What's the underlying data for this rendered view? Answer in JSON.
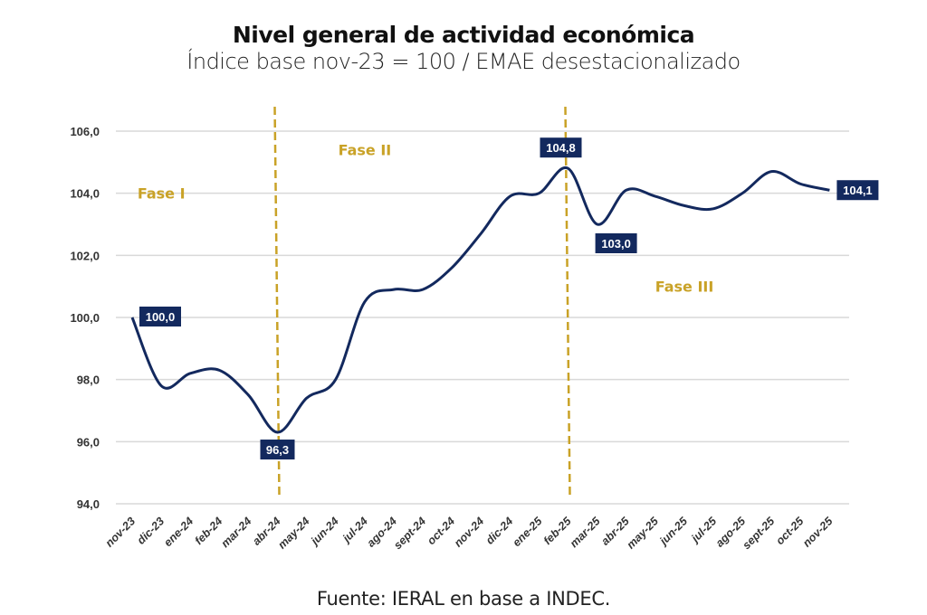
{
  "title": "Nivel general de actividad económica",
  "subtitle": "Índice base nov-23 = 100 / EMAE desestacionalizado",
  "source": "Fuente: IERAL en base a INDEC.",
  "colors": {
    "line": "#13295e",
    "phase": "#c9a227",
    "label_bg": "#13295e",
    "grid": "#d9d9d9"
  },
  "chart_data": {
    "type": "line",
    "title": "Nivel general de actividad económica",
    "subtitle": "Índice base nov-23 = 100 / EMAE desestacionalizado",
    "xlabel": "",
    "ylabel": "",
    "ylim": [
      94,
      106
    ],
    "yticks": [
      "94,0",
      "96,0",
      "98,0",
      "100,0",
      "102,0",
      "104,0",
      "106,0"
    ],
    "grid": true,
    "categories": [
      "nov-23",
      "dic-23",
      "ene-24",
      "feb-24",
      "mar-24",
      "abr-24",
      "may-24",
      "jun-24",
      "jul-24",
      "ago-24",
      "sept-24",
      "oct-24",
      "nov-24",
      "dic-24",
      "ene-25",
      "feb-25",
      "mar-25",
      "abr-25",
      "may-25",
      "jun-25",
      "jul-25",
      "ago-25",
      "sept-25",
      "oct-25",
      "nov-25"
    ],
    "values": [
      100.0,
      97.8,
      98.2,
      98.3,
      97.5,
      96.3,
      97.4,
      98.0,
      100.5,
      100.9,
      100.9,
      101.6,
      102.7,
      103.9,
      104.0,
      104.8,
      103.0,
      104.1,
      103.9,
      103.6,
      103.5,
      104.0,
      104.7,
      104.3,
      104.1
    ],
    "data_labels": [
      {
        "category": "nov-23",
        "text": "100,0",
        "pos": "right"
      },
      {
        "category": "abr-24",
        "text": "96,3",
        "pos": "below"
      },
      {
        "category": "feb-25",
        "text": "104,8",
        "pos": "above"
      },
      {
        "category": "mar-25",
        "text": "103,0",
        "pos": "below-right"
      },
      {
        "category": "nov-25",
        "text": "104,1",
        "pos": "right"
      }
    ],
    "phase_dividers": [
      "abr-24",
      "feb-25"
    ],
    "phases": [
      {
        "text": "Fase I",
        "category": "ene-24",
        "y": 104.0
      },
      {
        "text": "Fase II",
        "category": "ago-24",
        "y": 105.4
      },
      {
        "text": "Fase III",
        "category": "jul-25",
        "y": 101.0
      }
    ]
  }
}
